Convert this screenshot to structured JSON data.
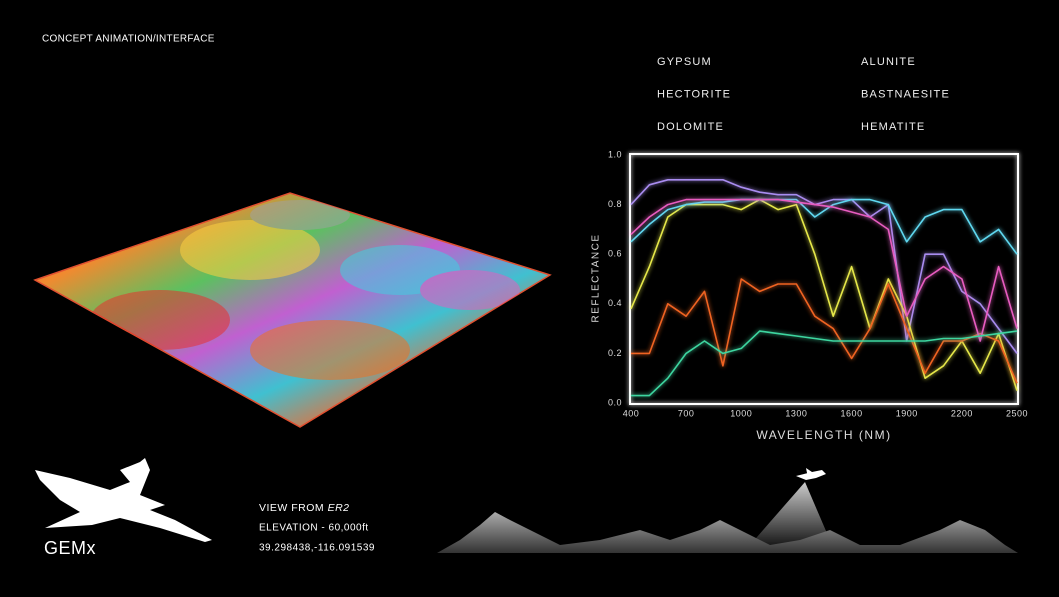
{
  "header": {
    "caption": "CONCEPT ANIMATION/INTERFACE"
  },
  "chart_data": {
    "type": "line",
    "xlabel": "WAVELENGTH (NM)",
    "ylabel": "REFLECTANCE",
    "x": [
      400,
      500,
      600,
      700,
      800,
      900,
      1000,
      1100,
      1200,
      1300,
      1400,
      1500,
      1600,
      1700,
      1800,
      1900,
      2000,
      2100,
      2200,
      2300,
      2400,
      2500
    ],
    "xlim": [
      400,
      2500
    ],
    "xticks": [
      400,
      700,
      1000,
      1300,
      1600,
      1900,
      2200,
      2500
    ],
    "ylim": [
      0,
      1
    ],
    "yticks": [
      {
        "value": 0,
        "label": "0.0"
      },
      0.2,
      0.4,
      0.6,
      0.8,
      {
        "value": 1,
        "label": "1.0"
      }
    ],
    "glow": true,
    "series": [
      {
        "name": "GYPSUM",
        "color": "#a98cf0",
        "values": [
          0.8,
          0.88,
          0.9,
          0.9,
          0.9,
          0.9,
          0.87,
          0.85,
          0.84,
          0.84,
          0.8,
          0.82,
          0.82,
          0.75,
          0.8,
          0.25,
          0.6,
          0.6,
          0.45,
          0.4,
          0.3,
          0.2
        ]
      },
      {
        "name": "ALUNITE",
        "color": "#e6e84a",
        "values": [
          0.38,
          0.55,
          0.75,
          0.8,
          0.8,
          0.8,
          0.78,
          0.82,
          0.78,
          0.8,
          0.6,
          0.35,
          0.55,
          0.3,
          0.5,
          0.35,
          0.1,
          0.15,
          0.25,
          0.12,
          0.28,
          0.05
        ]
      },
      {
        "name": "HECTORITE",
        "color": "#5fd8f0",
        "values": [
          0.65,
          0.72,
          0.78,
          0.8,
          0.81,
          0.81,
          0.82,
          0.82,
          0.82,
          0.82,
          0.75,
          0.8,
          0.82,
          0.82,
          0.8,
          0.65,
          0.75,
          0.78,
          0.78,
          0.65,
          0.7,
          0.6
        ]
      },
      {
        "name": "BASTNAESITE",
        "color": "#f06420",
        "values": [
          0.2,
          0.2,
          0.4,
          0.35,
          0.45,
          0.15,
          0.5,
          0.45,
          0.48,
          0.48,
          0.35,
          0.3,
          0.18,
          0.3,
          0.48,
          0.3,
          0.12,
          0.25,
          0.25,
          0.28,
          0.25,
          0.08
        ]
      },
      {
        "name": "DOLOMITE",
        "color": "#e85cc0",
        "values": [
          0.68,
          0.75,
          0.8,
          0.82,
          0.82,
          0.82,
          0.82,
          0.82,
          0.82,
          0.81,
          0.8,
          0.79,
          0.77,
          0.75,
          0.7,
          0.35,
          0.5,
          0.55,
          0.5,
          0.25,
          0.55,
          0.3
        ]
      },
      {
        "name": "HEMATITE",
        "color": "#3ed6a0",
        "values": [
          0.03,
          0.03,
          0.1,
          0.2,
          0.25,
          0.2,
          0.22,
          0.29,
          0.28,
          0.27,
          0.26,
          0.25,
          0.25,
          0.25,
          0.25,
          0.25,
          0.25,
          0.26,
          0.26,
          0.27,
          0.28,
          0.29
        ]
      }
    ]
  },
  "info": {
    "view_label": "VIEW FROM",
    "aircraft": "ER2",
    "elevation": "ELEVATION  -  60,000ft",
    "coordinates": "39.298438,-116.091539"
  },
  "logo": "GEMx"
}
